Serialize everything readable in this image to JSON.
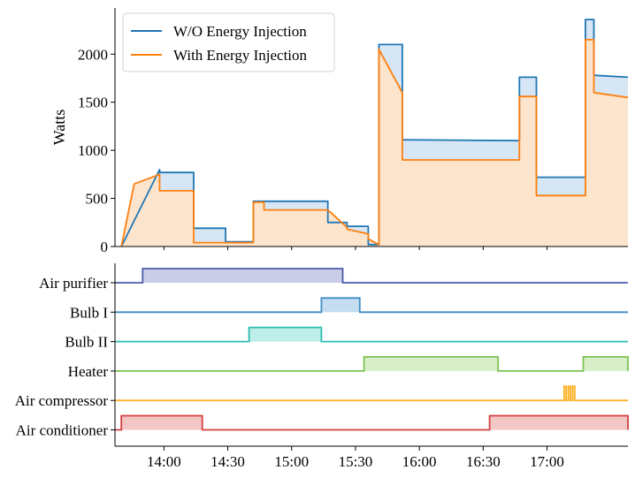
{
  "chart_data": [
    {
      "type": "line",
      "ylabel": "Watts",
      "ylim": [
        0,
        2480
      ],
      "xlim": [
        "13:37",
        "17:38"
      ],
      "yticks": [
        "0",
        "500",
        "1000",
        "1500",
        "2000"
      ],
      "ytick_values": [
        0,
        500,
        1000,
        1500,
        2000
      ],
      "legend_position": "top-left",
      "grid": false,
      "series": [
        {
          "name": "W/O Energy Injection",
          "color": "#1f77b4",
          "fill": "#d7e6f4",
          "x": [
            "13:40",
            "13:58",
            "13:58",
            "14:14",
            "14:14",
            "14:26",
            "14:26",
            "14:29",
            "14:29",
            "14:42",
            "14:42",
            "15:17",
            "15:17",
            "15:26",
            "15:26",
            "15:36",
            "15:36",
            "15:41",
            "15:41",
            "15:52",
            "15:52",
            "16:47",
            "16:47",
            "16:55",
            "16:55",
            "17:18",
            "17:18",
            "17:22",
            "17:22",
            "17:38"
          ],
          "y": [
            0,
            800,
            770,
            770,
            190,
            190,
            190,
            190,
            50,
            50,
            470,
            470,
            250,
            250,
            210,
            210,
            20,
            20,
            2100,
            2100,
            1110,
            1100,
            1760,
            1760,
            720,
            720,
            2360,
            2360,
            1780,
            1760
          ]
        },
        {
          "name": "With Energy Injection",
          "color": "#ff7f0e",
          "fill": "#fde4cc",
          "x": [
            "13:40",
            "13:46",
            "13:58",
            "13:58",
            "14:14",
            "14:14",
            "14:29",
            "14:29",
            "14:42",
            "14:42",
            "14:47",
            "14:47",
            "15:17",
            "15:17",
            "15:26",
            "15:26",
            "15:36",
            "15:36",
            "15:41",
            "15:41",
            "15:52",
            "15:52",
            "16:47",
            "16:47",
            "16:55",
            "16:55",
            "17:18",
            "17:18",
            "17:22",
            "17:22",
            "17:38"
          ],
          "y": [
            0,
            650,
            750,
            580,
            580,
            40,
            40,
            40,
            40,
            460,
            460,
            380,
            380,
            380,
            200,
            180,
            130,
            80,
            20,
            2050,
            1600,
            900,
            900,
            1560,
            1560,
            530,
            530,
            2150,
            2150,
            1600,
            1550
          ]
        }
      ]
    },
    {
      "type": "area",
      "xticks": [
        "14:00",
        "14:30",
        "15:00",
        "15:30",
        "16:00",
        "16:30",
        "17:00"
      ],
      "xlim": [
        "13:37",
        "17:38"
      ],
      "devices": [
        {
          "name": "Air purifier",
          "color": "#4a5ca8",
          "fill": "#c9cde8",
          "on": [
            [
              "13:50",
              "15:24"
            ]
          ]
        },
        {
          "name": "Bulb I",
          "color": "#3e8ec4",
          "fill": "#c5ddf0",
          "on": [
            [
              "15:14",
              "15:32"
            ]
          ]
        },
        {
          "name": "Bulb II",
          "color": "#2bbdb0",
          "fill": "#bfeee9",
          "on": [
            [
              "14:40",
              "15:14"
            ]
          ]
        },
        {
          "name": "Heater",
          "color": "#7cc352",
          "fill": "#d9efc9",
          "on": [
            [
              "15:34",
              "16:37"
            ],
            [
              "17:17",
              "17:38"
            ]
          ]
        },
        {
          "name": "Air compressor",
          "color": "#fdb32a",
          "fill": "#fee3b0",
          "on": [
            [
              "17:08",
              "17:09"
            ],
            [
              "17:10",
              "17:11"
            ],
            [
              "17:12",
              "17:13"
            ]
          ]
        },
        {
          "name": "Air conditioner",
          "color": "#d3403f",
          "fill": "#f3c6c6",
          "on": [
            [
              "13:40",
              "14:18"
            ],
            [
              "16:33",
              "17:38"
            ]
          ]
        }
      ]
    }
  ]
}
